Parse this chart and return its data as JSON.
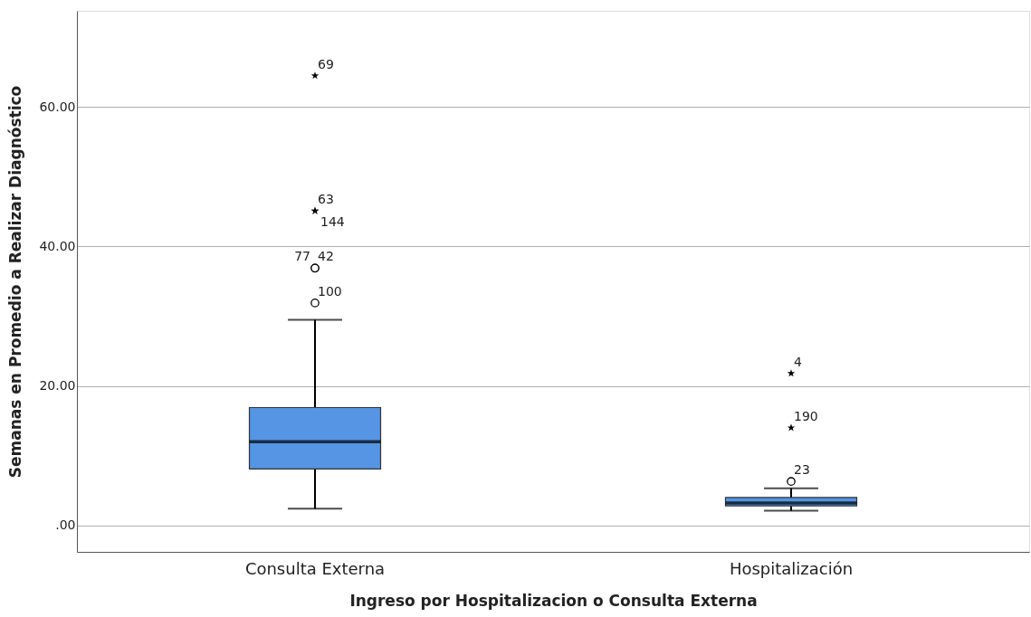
{
  "chart_data": {
    "type": "box",
    "xlabel": "Ingreso por Hospitalizacion o Consulta Externa",
    "ylabel": "Semanas en Promedio a Realizar Diagnóstico",
    "categories": [
      "Consulta Externa",
      "Hospitalización"
    ],
    "series": [
      {
        "color": "#5595e3",
        "boxes": [
          {
            "low": 2.4,
            "q1": 8.1,
            "median": 12.0,
            "q3": 16.9,
            "high": 29.5,
            "outliers": [
              31.9,
              36.9,
              36.9,
              45.1,
              45.1,
              64.5
            ]
          },
          {
            "low": 2.1,
            "q1": 2.8,
            "median": 3.2,
            "q3": 4.0,
            "high": 5.3,
            "outliers": [
              6.3,
              14.0,
              21.8
            ]
          }
        ]
      }
    ],
    "ylim": [
      -3.8,
      73.8
    ],
    "yticks": [
      {
        "value": 0,
        "label": ".00"
      },
      {
        "value": 20,
        "label": "20.00"
      },
      {
        "value": 40,
        "label": "40.00"
      },
      {
        "value": 60,
        "label": "60.00"
      }
    ],
    "grid": "y",
    "annotations": [
      "100",
      "77",
      "42",
      "63",
      "144",
      "69",
      "23",
      "190",
      "4"
    ]
  }
}
